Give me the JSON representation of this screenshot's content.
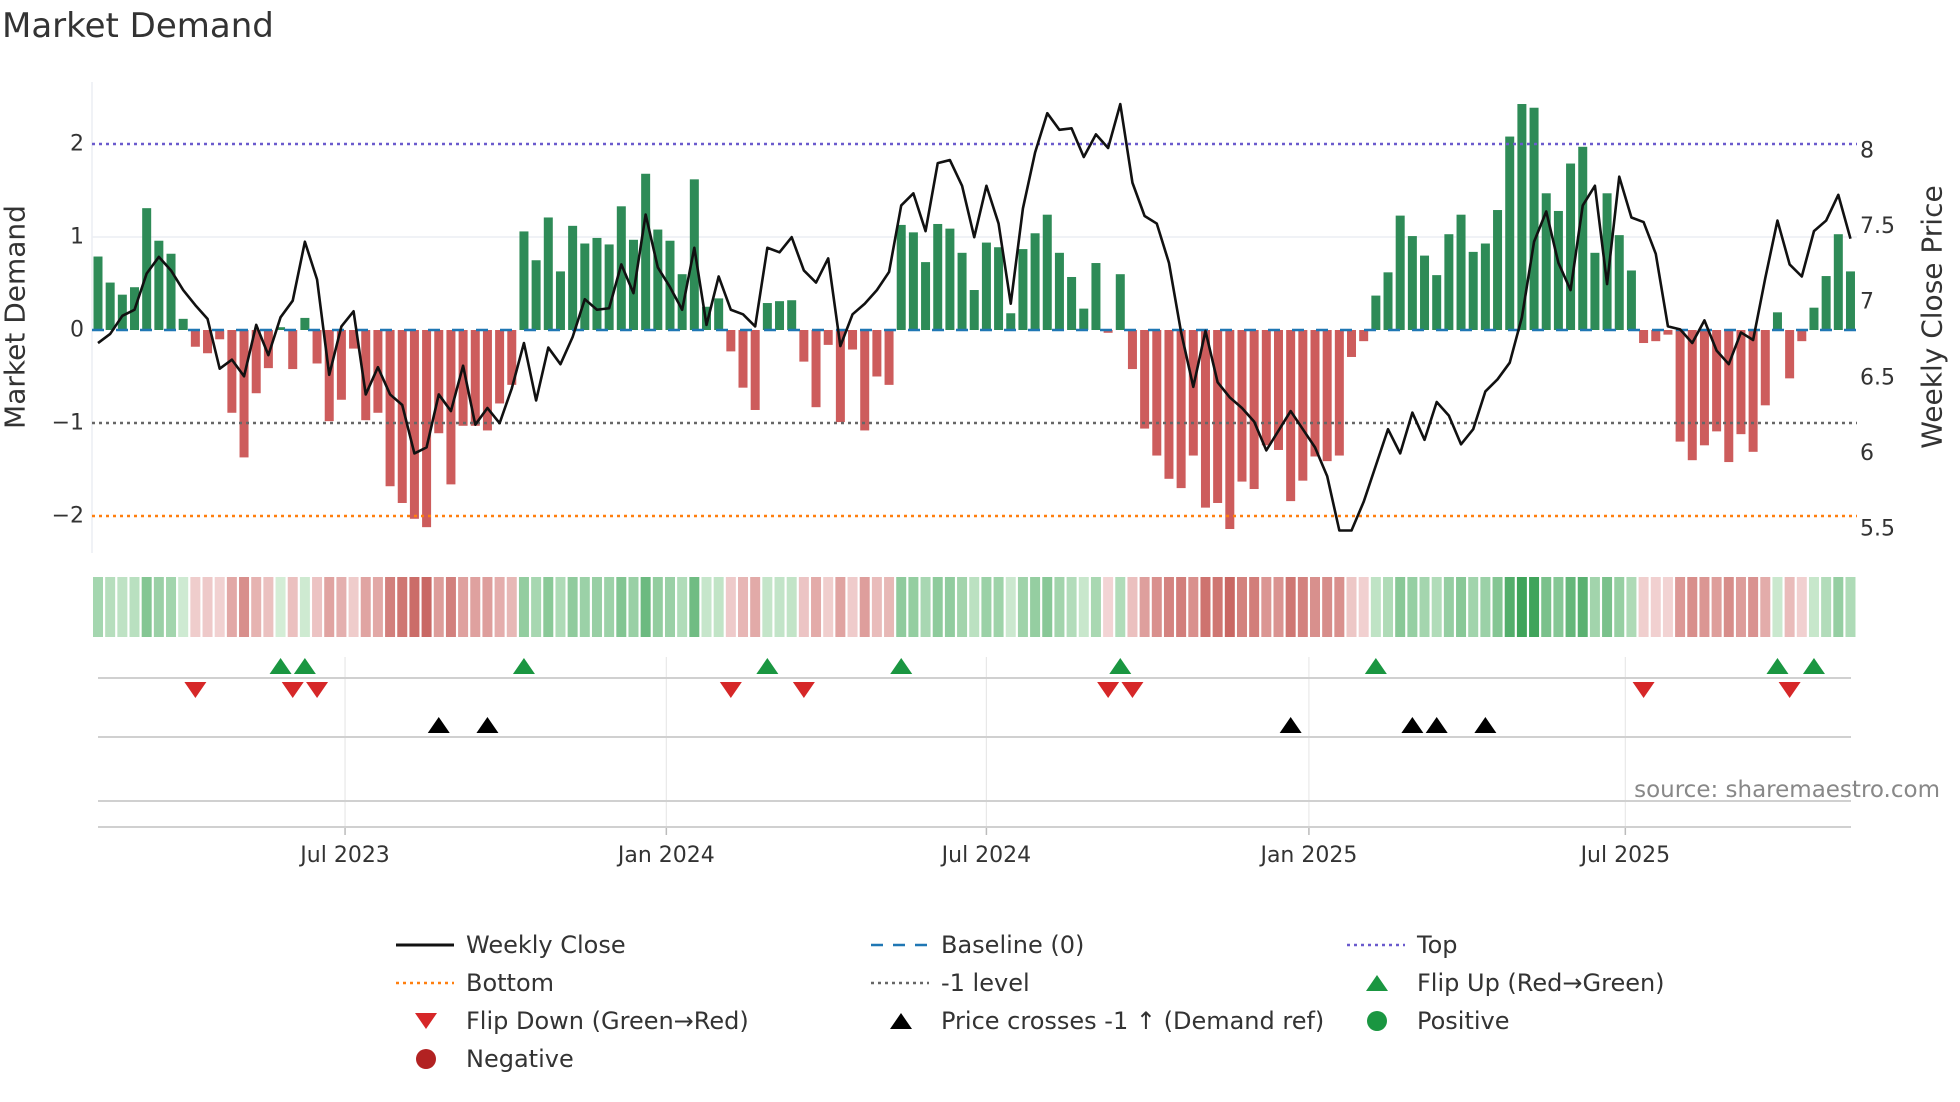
{
  "title": "Market Demand",
  "source": "source: sharemaestro.com",
  "chart_data": {
    "type": "bar",
    "title": "Market Demand",
    "ylabel": "Market Demand",
    "ylabel_right": "Weekly Close Price",
    "ylim": [
      -2.5,
      2.7
    ],
    "ylim_right": [
      5.4,
      8.4
    ],
    "yticks": [
      {
        "v": 2,
        "label": "2"
      },
      {
        "v": 1,
        "label": "1"
      },
      {
        "v": 0,
        "label": "0"
      },
      {
        "v": -1,
        "label": "−1"
      },
      {
        "v": -2,
        "label": "−2"
      }
    ],
    "yticks_right": [
      {
        "v": 8,
        "label": "8"
      },
      {
        "v": 7.5,
        "label": "7.5"
      },
      {
        "v": 7,
        "label": "7"
      },
      {
        "v": 6.5,
        "label": "6.5"
      },
      {
        "v": 6,
        "label": "6"
      },
      {
        "v": 5.5,
        "label": "5.5"
      }
    ],
    "xticks": [
      {
        "week": 20.3,
        "label": "Jul 2023"
      },
      {
        "week": 46.7,
        "label": "Jan 2024"
      },
      {
        "week": 73,
        "label": "Jul 2024"
      },
      {
        "week": 99.5,
        "label": "Jan 2025"
      },
      {
        "week": 125.5,
        "label": "Jul 2025"
      }
    ],
    "reference_lines": {
      "top": 2,
      "bottom": -2,
      "minus_one": -1,
      "baseline": 0
    },
    "demand": [
      0.79,
      0.51,
      0.38,
      0.46,
      1.31,
      0.96,
      0.82,
      0.12,
      -0.18,
      -0.25,
      -0.1,
      -0.89,
      -1.37,
      -0.68,
      -0.41,
      0.03,
      -0.42,
      0.13,
      -0.36,
      -0.98,
      -0.75,
      -0.2,
      -0.97,
      -0.89,
      -1.68,
      -1.86,
      -2.03,
      -2.12,
      -1.11,
      -1.66,
      -1.03,
      -1.03,
      -1.08,
      -0.79,
      -0.59,
      1.06,
      0.75,
      1.21,
      0.63,
      1.12,
      0.93,
      0.99,
      0.92,
      1.33,
      0.97,
      1.68,
      1.08,
      0.96,
      0.6,
      1.62,
      0.25,
      0.34,
      -0.23,
      -0.62,
      -0.86,
      0.29,
      0.31,
      0.32,
      -0.34,
      -0.83,
      -0.16,
      -0.99,
      -0.21,
      -1.08,
      -0.5,
      -0.59,
      1.13,
      1.05,
      0.73,
      1.14,
      1.09,
      0.83,
      0.43,
      0.94,
      0.89,
      0.18,
      0.87,
      1.04,
      1.24,
      0.83,
      0.57,
      0.23,
      0.72,
      -0.03,
      0.6,
      -0.42,
      -1.06,
      -1.35,
      -1.6,
      -1.7,
      -1.35,
      -1.91,
      -1.86,
      -2.14,
      -1.63,
      -1.71,
      -1.24,
      -1.29,
      -1.84,
      -1.62,
      -1.36,
      -1.41,
      -1.35,
      -0.29,
      -0.12,
      0.37,
      0.62,
      1.23,
      1.01,
      0.8,
      0.59,
      1.03,
      1.24,
      0.84,
      0.93,
      1.29,
      2.08,
      2.43,
      2.39,
      1.47,
      1.28,
      1.79,
      1.97,
      0.83,
      1.47,
      1.02,
      0.64,
      -0.14,
      -0.12,
      -0.05,
      -1.2,
      -1.4,
      -1.24,
      -1.09,
      -1.42,
      -1.12,
      -1.31,
      -0.81,
      0.19,
      -0.52,
      -0.12,
      0.24,
      0.58,
      1.03,
      0.63
    ],
    "weekly_close": [
      6.73,
      6.79,
      6.91,
      6.95,
      7.19,
      7.3,
      7.21,
      7.08,
      6.98,
      6.89,
      6.56,
      6.62,
      6.51,
      6.85,
      6.65,
      6.9,
      7.01,
      7.4,
      7.15,
      6.52,
      6.84,
      6.94,
      6.39,
      6.57,
      6.39,
      6.32,
      6.0,
      6.04,
      6.39,
      6.28,
      6.58,
      6.19,
      6.3,
      6.2,
      6.43,
      6.73,
      6.35,
      6.7,
      6.59,
      6.77,
      7.02,
      6.95,
      6.96,
      7.25,
      7.06,
      7.58,
      7.23,
      7.1,
      6.95,
      7.36,
      6.85,
      7.17,
      6.95,
      6.92,
      6.84,
      7.36,
      7.33,
      7.43,
      7.21,
      7.13,
      7.29,
      6.71,
      6.92,
      6.99,
      7.08,
      7.2,
      7.64,
      7.72,
      7.47,
      7.92,
      7.94,
      7.77,
      7.43,
      7.77,
      7.52,
      6.99,
      7.62,
      7.99,
      8.25,
      8.14,
      8.15,
      7.96,
      8.11,
      8.02,
      8.31,
      7.79,
      7.57,
      7.52,
      7.26,
      6.8,
      6.44,
      6.81,
      6.47,
      6.37,
      6.3,
      6.21,
      6.02,
      6.15,
      6.28,
      6.16,
      6.04,
      5.85,
      5.49,
      5.49,
      5.68,
      5.92,
      6.16,
      6.0,
      6.27,
      6.09,
      6.34,
      6.25,
      6.06,
      6.16,
      6.41,
      6.49,
      6.6,
      6.9,
      7.4,
      7.6,
      7.26,
      7.08,
      7.64,
      7.77,
      7.12,
      7.83,
      7.56,
      7.53,
      7.32,
      6.84,
      6.82,
      6.73,
      6.88,
      6.68,
      6.59,
      6.8,
      6.75,
      7.16,
      7.54,
      7.25,
      7.17,
      7.47,
      7.54,
      7.71,
      7.42
    ],
    "flip_up_weeks": [
      15,
      17,
      35,
      55,
      66,
      84,
      105,
      138,
      141
    ],
    "flip_down_weeks": [
      8,
      16,
      18,
      52,
      58,
      83,
      85,
      127,
      139
    ],
    "price_cross_weeks": [
      28,
      32,
      98,
      108,
      110,
      114
    ],
    "colors": {
      "positive_bar": "#2e8b57",
      "negative_bar": "#cd5c5c",
      "line": "#111111",
      "baseline": "#1f77b4",
      "top": "#6a5acd",
      "bottom": "#ff7f0e",
      "minus_one": "#666666",
      "flip_up": "#1a9641",
      "flip_down": "#d62728",
      "cross": "#000000",
      "positive": "#1a9641",
      "negative": "#b22222"
    },
    "legend": [
      {
        "label": "Weekly Close",
        "kind": "line-solid",
        "color": "#111111"
      },
      {
        "label": "Baseline (0)",
        "kind": "line-dash",
        "color": "#1f77b4"
      },
      {
        "label": "Top",
        "kind": "line-dot",
        "color": "#6a5acd"
      },
      {
        "label": "Bottom",
        "kind": "line-dot",
        "color": "#ff7f0e"
      },
      {
        "label": "-1 level",
        "kind": "line-dot",
        "color": "#666666"
      },
      {
        "label": "Flip Up (Red→Green)",
        "kind": "tri-up",
        "color": "#1a9641"
      },
      {
        "label": "Flip Down (Green→Red)",
        "kind": "tri-down",
        "color": "#d62728"
      },
      {
        "label": "Price crosses -1 ↑ (Demand ref)",
        "kind": "tri-up",
        "color": "#000000"
      },
      {
        "label": "Positive",
        "kind": "circle",
        "color": "#1a9641"
      },
      {
        "label": "Negative",
        "kind": "circle",
        "color": "#b22222"
      }
    ],
    "legend_placement": "bottom"
  }
}
